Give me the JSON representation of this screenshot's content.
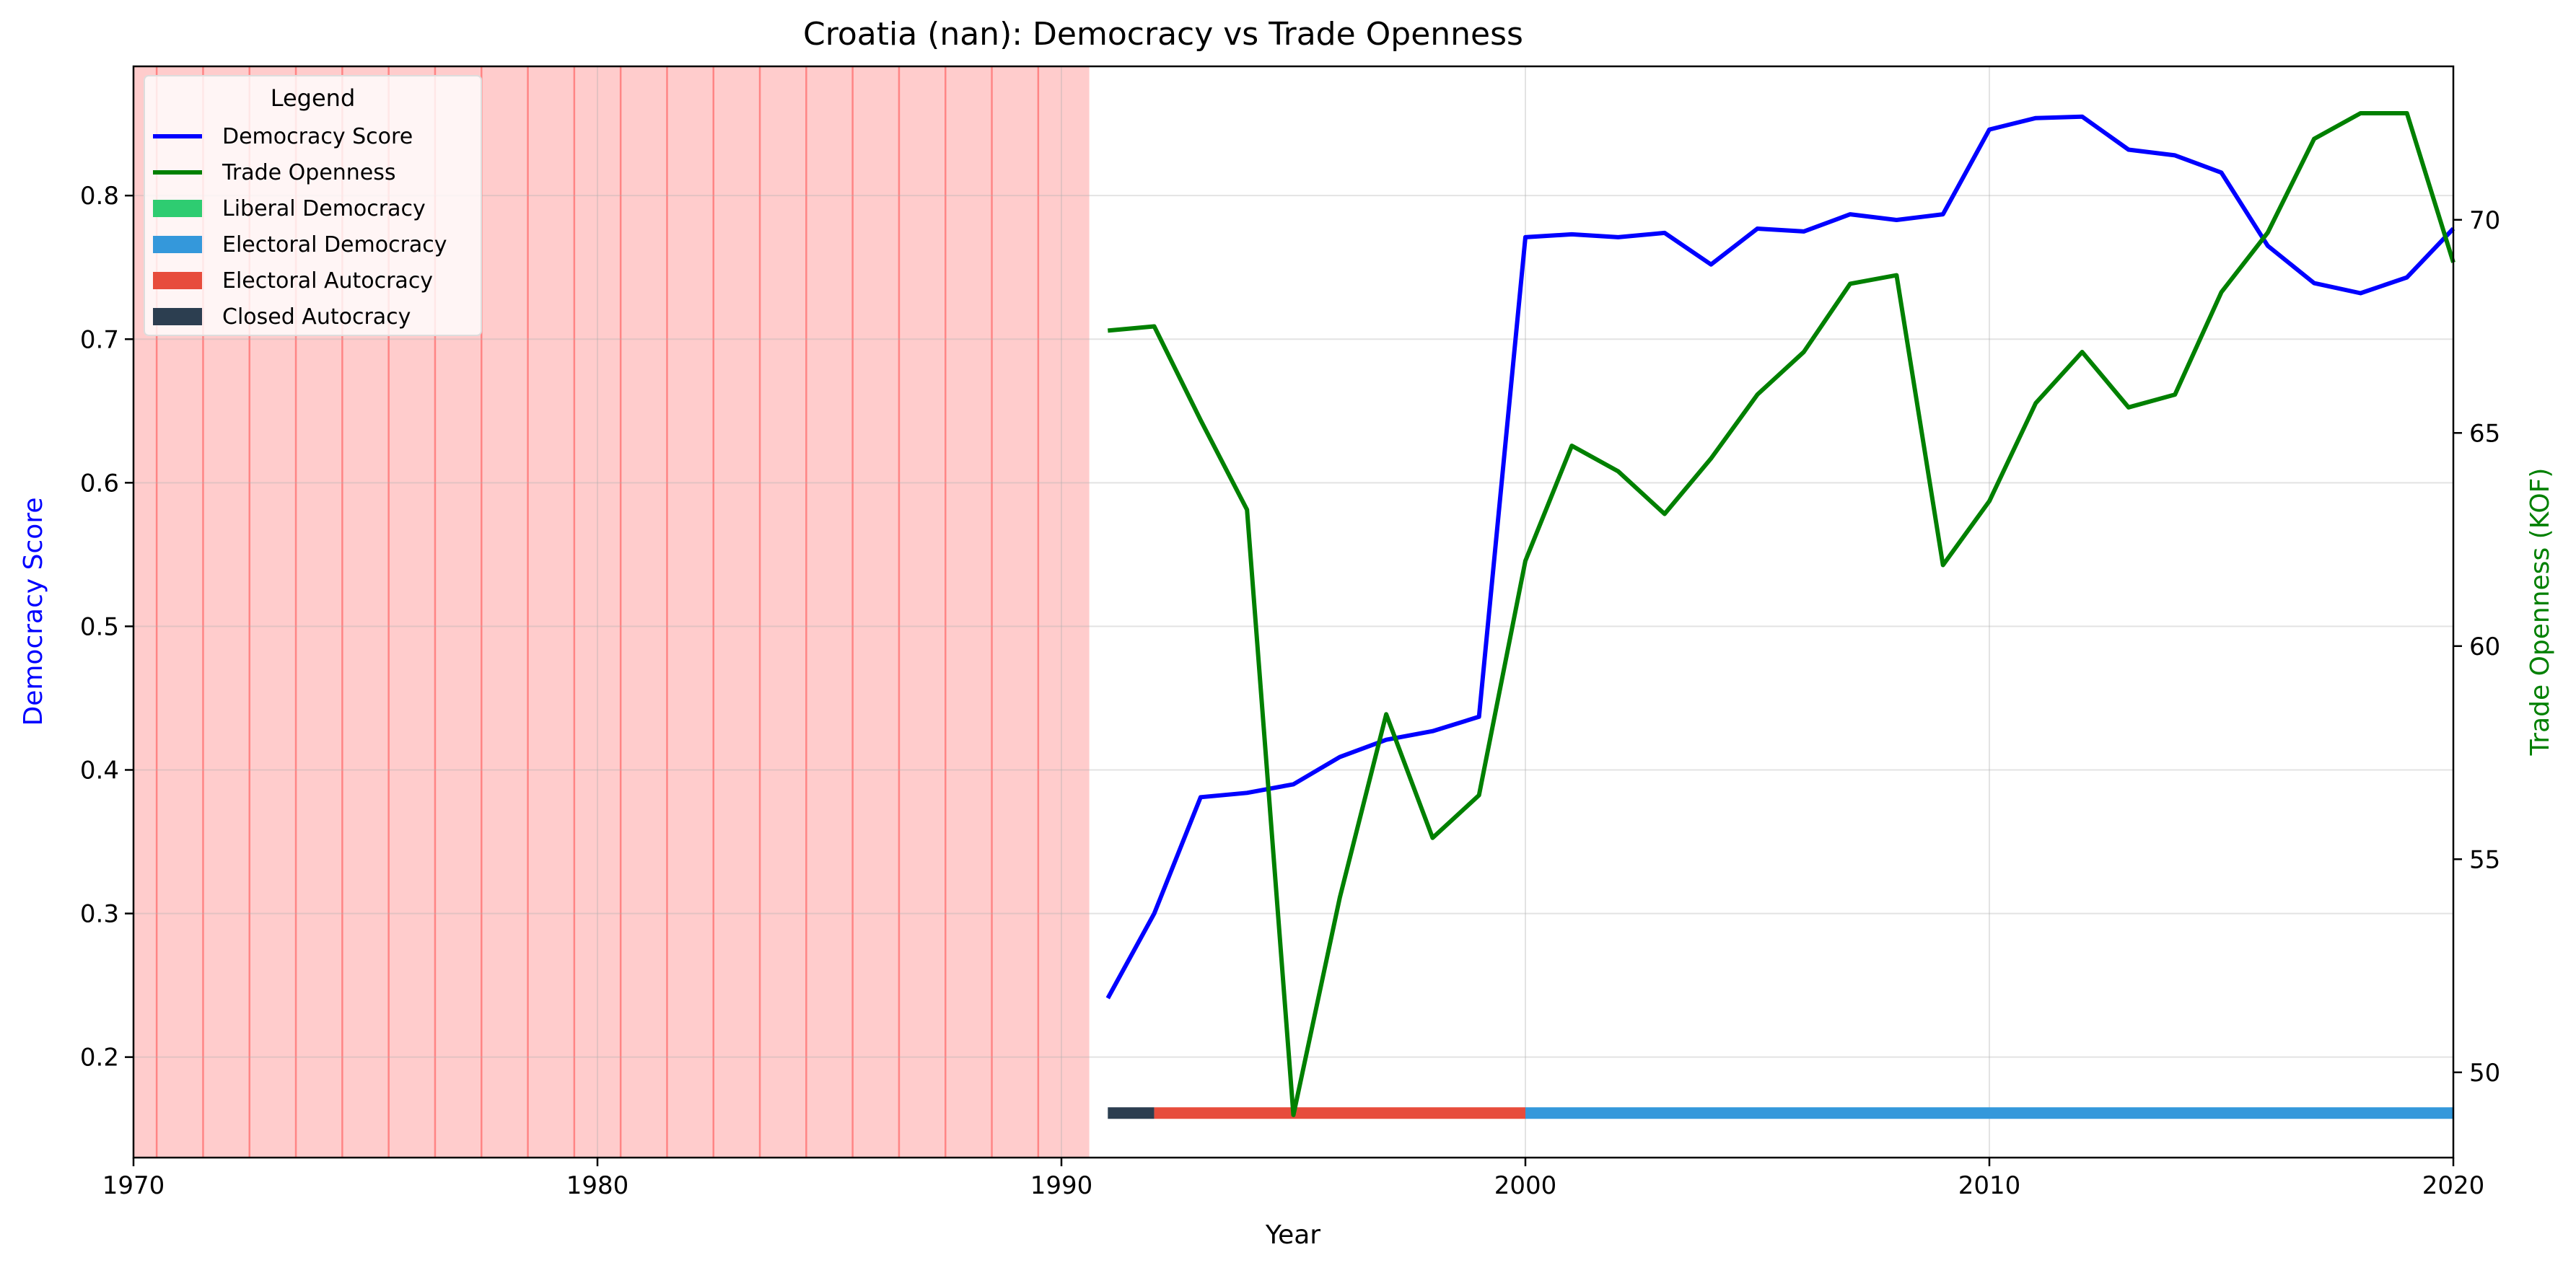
{
  "chart_data": {
    "type": "line",
    "title": "Croatia (nan): Democracy vs Trade Openness",
    "xlabel": "Year",
    "ylabel_left": "Democracy Score",
    "ylabel_right": "Trade Openness (KOF)",
    "xlim": [
      1970,
      2020
    ],
    "ylim_left": [
      0.13,
      0.89
    ],
    "ylim_right": [
      48.0,
      73.6
    ],
    "x_ticks": [
      1970,
      1980,
      1990,
      2000,
      2010,
      2020
    ],
    "y_ticks_left": [
      0.2,
      0.3,
      0.4,
      0.5,
      0.6,
      0.7,
      0.8
    ],
    "y_ticks_right": [
      50,
      55,
      60,
      65,
      70
    ],
    "grid": true,
    "legend": {
      "title": "Legend",
      "placement": "top-left",
      "entries": [
        {
          "label": "Democracy Score",
          "color": "#0000ff",
          "kind": "line"
        },
        {
          "label": "Trade Openness",
          "color": "#008000",
          "kind": "line"
        },
        {
          "label": "Liberal Democracy",
          "color": "#2ecc71",
          "kind": "patch"
        },
        {
          "label": "Electoral Democracy",
          "color": "#3498db",
          "kind": "patch"
        },
        {
          "label": "Electoral Autocracy",
          "color": "#e74c3c",
          "kind": "patch"
        },
        {
          "label": "Closed Autocracy",
          "color": "#2c3e50",
          "kind": "patch"
        }
      ]
    },
    "shaded_region": {
      "x_start": 1970,
      "x_end": 1990.6,
      "color": "#ff9999",
      "line_color": "#ff6666",
      "line_years_start": 1970.5,
      "line_years_end": 1989.5
    },
    "series": [
      {
        "name": "Democracy Score",
        "axis": "left",
        "color": "#0000ff",
        "x": [
          1991,
          1992,
          1993,
          1994,
          1995,
          1996,
          1997,
          1998,
          1999,
          2000,
          2001,
          2002,
          2003,
          2004,
          2005,
          2006,
          2007,
          2008,
          2009,
          2010,
          2011,
          2012,
          2013,
          2014,
          2015,
          2016,
          2017,
          2018,
          2019,
          2020
        ],
        "values": [
          0.241,
          0.3,
          0.381,
          0.384,
          0.39,
          0.409,
          0.421,
          0.427,
          0.437,
          0.771,
          0.773,
          0.771,
          0.774,
          0.752,
          0.777,
          0.775,
          0.787,
          0.783,
          0.787,
          0.846,
          0.854,
          0.855,
          0.832,
          0.828,
          0.816,
          0.765,
          0.739,
          0.732,
          0.743,
          0.777
        ]
      },
      {
        "name": "Trade Openness",
        "axis": "right",
        "color": "#008000",
        "x": [
          1991,
          1992,
          1993,
          1994,
          1995,
          1996,
          1997,
          1998,
          1999,
          2000,
          2001,
          2002,
          2003,
          2004,
          2005,
          2006,
          2007,
          2008,
          2009,
          2010,
          2011,
          2012,
          2013,
          2014,
          2015,
          2016,
          2017,
          2018,
          2019,
          2020
        ],
        "values": [
          67.4,
          67.5,
          65.3,
          63.2,
          49.0,
          54.1,
          58.4,
          55.5,
          56.5,
          62.0,
          64.7,
          64.1,
          63.1,
          64.4,
          65.9,
          66.9,
          68.5,
          68.7,
          61.9,
          63.4,
          65.7,
          66.9,
          65.6,
          65.9,
          68.3,
          69.7,
          71.9,
          72.5,
          72.5,
          69.0
        ]
      }
    ],
    "regime_bar": {
      "y_value": 0.161,
      "segments": [
        {
          "from": 1991,
          "to": 1992,
          "regime": "Closed Autocracy",
          "color": "#2c3e50"
        },
        {
          "from": 1992,
          "to": 2000,
          "regime": "Electoral Autocracy",
          "color": "#e74c3c"
        },
        {
          "from": 2000,
          "to": 2020,
          "regime": "Electoral Democracy",
          "color": "#3498db"
        }
      ]
    }
  }
}
